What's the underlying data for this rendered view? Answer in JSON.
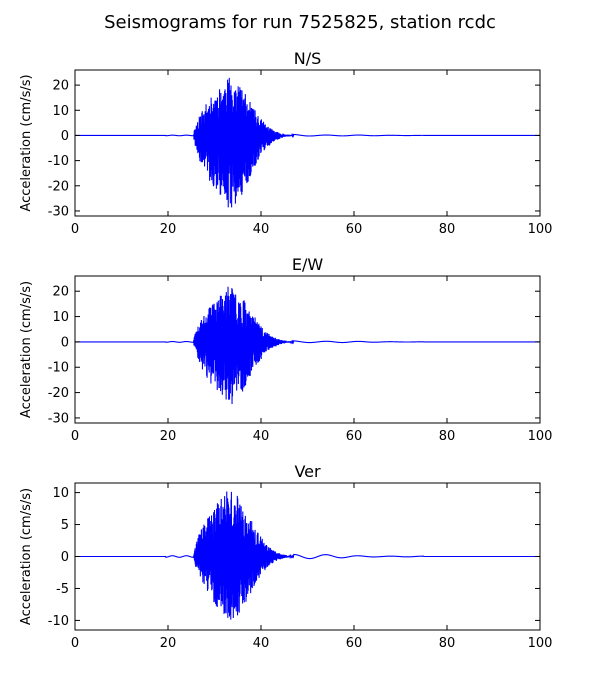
{
  "figure": {
    "title": "Seismograms for run 7525825, station rcdc"
  },
  "style": {
    "trace_color": "#0000ff",
    "axes_color": "#000000",
    "background": "#ffffff"
  },
  "chart_data": [
    {
      "type": "line",
      "title": "N/S",
      "xlabel": "",
      "ylabel": "Acceleration (cm/s/s)",
      "xlim": [
        0,
        100
      ],
      "ylim": [
        -32,
        26
      ],
      "xticks": [
        0,
        20,
        40,
        60,
        80,
        100
      ],
      "yticks": [
        -30,
        -20,
        -10,
        0,
        10,
        20
      ],
      "grid": false,
      "signal": {
        "onset": 25.5,
        "peak_at": 33,
        "end": 47,
        "pos_peak": 23,
        "neg_peak": -29,
        "tail_amp": 0.4,
        "seed": 11
      }
    },
    {
      "type": "line",
      "title": "E/W",
      "xlabel": "",
      "ylabel": "Acceleration (cm/s/s)",
      "xlim": [
        0,
        100
      ],
      "ylim": [
        -32,
        26
      ],
      "xticks": [
        0,
        20,
        40,
        60,
        80,
        100
      ],
      "yticks": [
        -30,
        -20,
        -10,
        0,
        10,
        20
      ],
      "grid": false,
      "signal": {
        "onset": 25.5,
        "peak_at": 33,
        "end": 47,
        "pos_peak": 22,
        "neg_peak": -25,
        "tail_amp": 0.5,
        "seed": 23
      }
    },
    {
      "type": "line",
      "title": "Ver",
      "xlabel": "",
      "ylabel": "Acceleration (cm/s/s)",
      "xlim": [
        0,
        100
      ],
      "ylim": [
        -11.5,
        11.5
      ],
      "xticks": [
        0,
        20,
        40,
        60,
        80,
        100
      ],
      "yticks": [
        -10,
        -5,
        0,
        5,
        10
      ],
      "grid": false,
      "signal": {
        "onset": 25.5,
        "peak_at": 33,
        "end": 47,
        "pos_peak": 10.5,
        "neg_peak": -10.3,
        "tail_amp": 0.4,
        "seed": 37
      }
    }
  ]
}
